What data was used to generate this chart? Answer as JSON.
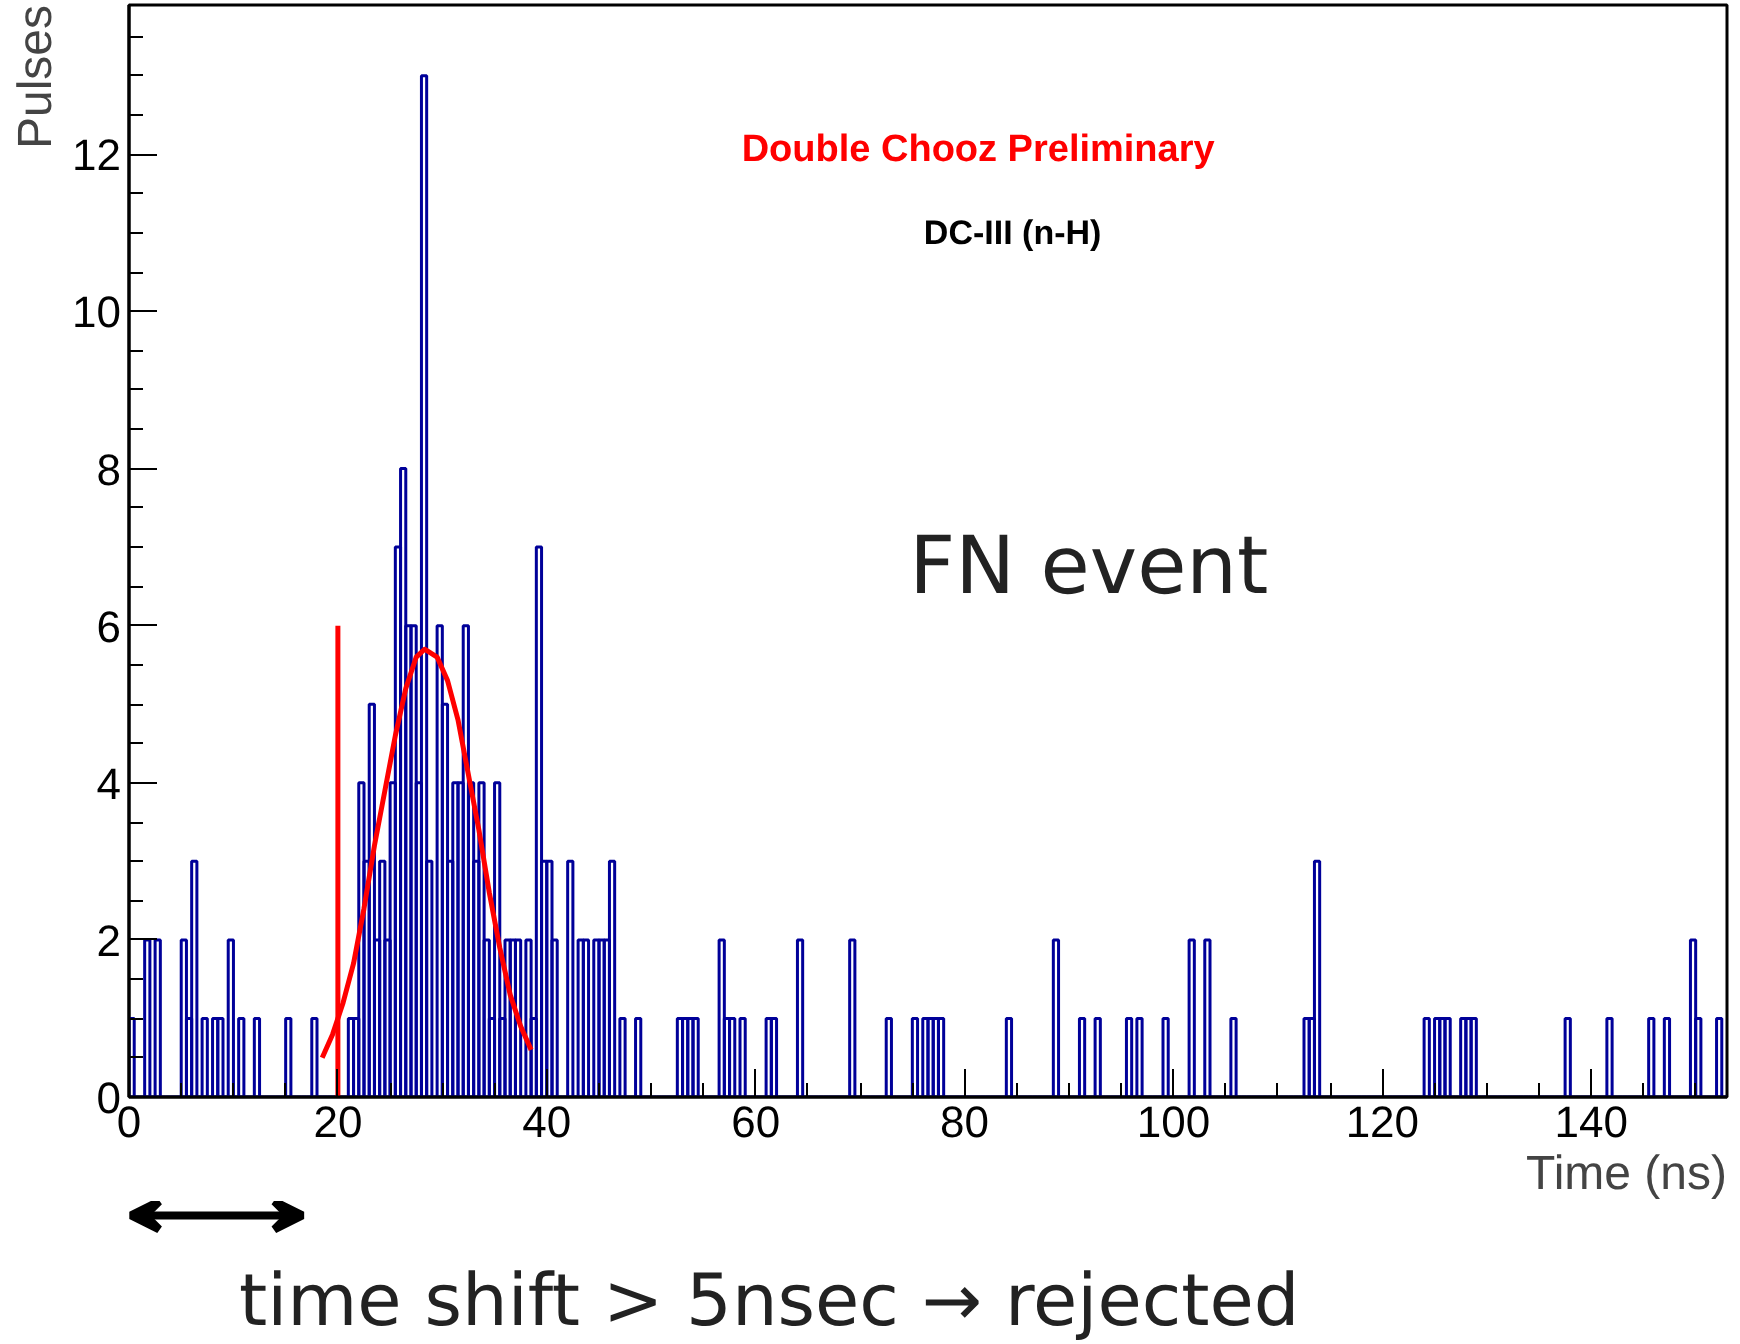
{
  "chart_data": {
    "type": "histogram",
    "xlabel": "Time (ns)",
    "ylabel": "Pulses",
    "xlim": [
      0,
      153
    ],
    "ylim": [
      0,
      13.9
    ],
    "xticks": [
      0,
      20,
      40,
      60,
      80,
      100,
      120,
      140
    ],
    "yticks": [
      0,
      2,
      4,
      6,
      8,
      10,
      12
    ],
    "bins": [
      0,
      0.5,
      1,
      1.5,
      2,
      2.5,
      3,
      3.5,
      4,
      4.5,
      5,
      5.5,
      6,
      6.5,
      7,
      7.5,
      8,
      8.5,
      9,
      9.5,
      10,
      10.5,
      11,
      11.5,
      12,
      12.5,
      13,
      13.5,
      14,
      14.5,
      15,
      15.5,
      16,
      16.5,
      17,
      17.5,
      18,
      18.5,
      19,
      19.5,
      20,
      20.5,
      21,
      21.5,
      22,
      22.5,
      23,
      23.5,
      24,
      24.5,
      25,
      25.5,
      26,
      26.5,
      27,
      27.5,
      28,
      28.5,
      29,
      29.5,
      30,
      30.5,
      31,
      31.5,
      32,
      32.5,
      33,
      33.5,
      34,
      34.5,
      35,
      35.5,
      36,
      36.5,
      37,
      37.5,
      38,
      38.5,
      39,
      39.5,
      40,
      40.5,
      41,
      41.5,
      42,
      42.5,
      43,
      43.5,
      44,
      44.5,
      45,
      45.5,
      46,
      46.5,
      47,
      47.5,
      48,
      48.5,
      49,
      49.5,
      50,
      50.5,
      51,
      51.5,
      52,
      52.5,
      53,
      53.5,
      54,
      54.5,
      55,
      55.5,
      56,
      56.5,
      57,
      57.5,
      58,
      58.5,
      59,
      59.5,
      60,
      60.5,
      61,
      61.5,
      62,
      62.5,
      63,
      63.5,
      64,
      64.5,
      65,
      65.5,
      66,
      66.5,
      67,
      67.5,
      68,
      68.5,
      69,
      69.5,
      70,
      70.5,
      71,
      71.5,
      72,
      72.5,
      73,
      73.5,
      74,
      74.5,
      75,
      75.5,
      76,
      76.5,
      77,
      77.5,
      78,
      78.5,
      79,
      79.5,
      80,
      80.5,
      81,
      81.5,
      82,
      82.5,
      83,
      83.5,
      84,
      84.5,
      85,
      85.5,
      86,
      86.5,
      87,
      87.5,
      88,
      88.5,
      89,
      89.5,
      90,
      90.5,
      91,
      91.5,
      92,
      92.5,
      93,
      93.5,
      94,
      94.5,
      95,
      95.5,
      96,
      96.5,
      97,
      97.5,
      98,
      98.5,
      99,
      99.5,
      100,
      100.5,
      101,
      101.5,
      102,
      102.5,
      103,
      103.5,
      104,
      104.5,
      105,
      105.5,
      106,
      106.5,
      107,
      107.5,
      108,
      108.5,
      109,
      109.5,
      110,
      110.5,
      111,
      111.5,
      112,
      112.5,
      113,
      113.5,
      114,
      114.5,
      115,
      115.5,
      116,
      116.5,
      117,
      117.5,
      118,
      118.5,
      119,
      119.5,
      120,
      120.5,
      121,
      121.5,
      122,
      122.5,
      123,
      123.5,
      124,
      124.5,
      125,
      125.5,
      126,
      126.5,
      127,
      127.5,
      128,
      128.5,
      129,
      129.5,
      130,
      130.5,
      131,
      131.5,
      132,
      132.5,
      133,
      133.5,
      134,
      134.5,
      135,
      135.5,
      136,
      136.5,
      137,
      137.5,
      138,
      138.5,
      139,
      139.5,
      140,
      140.5,
      141,
      141.5,
      142,
      142.5,
      143,
      143.5,
      144,
      144.5,
      145,
      145.5,
      146,
      146.5,
      147,
      147.5,
      148,
      148.5,
      149,
      149.5,
      150,
      150.5,
      151,
      151.5,
      152,
      152.5,
      153
    ],
    "series": [
      {
        "color": "#000099",
        "values": [
          1,
          0,
          0,
          2,
          0,
          2,
          0,
          0,
          0,
          0,
          2,
          1,
          3,
          0,
          1,
          0,
          1,
          1,
          0,
          2,
          0,
          1,
          0,
          0,
          1,
          0,
          0,
          0,
          0,
          0,
          1,
          0,
          0,
          0,
          0,
          1,
          0,
          0,
          0,
          0,
          0,
          0,
          1,
          1,
          4,
          3,
          5,
          2,
          3,
          2,
          4,
          7,
          8,
          6,
          6,
          4,
          13,
          3,
          0,
          6,
          5,
          3,
          4,
          4,
          6,
          4,
          3,
          4,
          2,
          1,
          4,
          1,
          2,
          2,
          2,
          0,
          2,
          1,
          7,
          3,
          3,
          2,
          0,
          0,
          3,
          0,
          2,
          2,
          0,
          2,
          2,
          2,
          3,
          0,
          1,
          0,
          0,
          1,
          0,
          0,
          0,
          0,
          0,
          0,
          0,
          1,
          1,
          1,
          1,
          0,
          0,
          0,
          0,
          2,
          1,
          1,
          0,
          1,
          0,
          0,
          0,
          0,
          1,
          1,
          0,
          0,
          0,
          0,
          2,
          0,
          0,
          0,
          0,
          0,
          0,
          0,
          0,
          0,
          2,
          0,
          0,
          0,
          0,
          0,
          0,
          1,
          0,
          0,
          0,
          0,
          1,
          0,
          1,
          1,
          1,
          1,
          0,
          0,
          0,
          0,
          0,
          0,
          0,
          0,
          0,
          0,
          0,
          0,
          1,
          0,
          0,
          0,
          0,
          0,
          0,
          0,
          0,
          2,
          0,
          0,
          0,
          0,
          1,
          0,
          0,
          1,
          0,
          0,
          0,
          0,
          0,
          1,
          0,
          1,
          0,
          0,
          0,
          0,
          1,
          0,
          0,
          0,
          0,
          2,
          0,
          0,
          2,
          0,
          0,
          0,
          0,
          1,
          0,
          0,
          0,
          0,
          0,
          0,
          0,
          0,
          0,
          0,
          0,
          0,
          0,
          1,
          1,
          3,
          0,
          0,
          0,
          0,
          0,
          0,
          0,
          0,
          0,
          0,
          0,
          0,
          0,
          0,
          0,
          0,
          0,
          0,
          0,
          0,
          1,
          0,
          1,
          1,
          1,
          0,
          0,
          1,
          1,
          1,
          0,
          0,
          0,
          0,
          0,
          0,
          0,
          0,
          0,
          0,
          0,
          0,
          0,
          0,
          0,
          0,
          0,
          1,
          0,
          0,
          0,
          0,
          0,
          0,
          0,
          1,
          0,
          0,
          0,
          0,
          0,
          0,
          0,
          1,
          0,
          0,
          1,
          0,
          0,
          0,
          0,
          2,
          1,
          0,
          0,
          0,
          1,
          0
        ]
      },
      {
        "type": "line",
        "color": "#ff0000",
        "x": [
          18.5,
          19.5,
          20.5,
          21.5,
          22.5,
          23.5,
          24.5,
          25.5,
          26.5,
          27.5,
          28.3,
          29.5,
          30.5,
          31.5,
          32.5,
          33.5,
          34.5,
          35.5,
          36.5,
          37.5,
          38.5
        ],
        "values": [
          0.5,
          0.8,
          1.2,
          1.7,
          2.4,
          3.2,
          3.9,
          4.6,
          5.2,
          5.6,
          5.7,
          5.6,
          5.3,
          4.8,
          4.1,
          3.4,
          2.6,
          1.9,
          1.3,
          0.9,
          0.6
        ]
      },
      {
        "type": "line",
        "color": "#ff0000",
        "x": [
          20,
          20
        ],
        "values": [
          0,
          6
        ]
      }
    ],
    "annotations": [
      "Double Chooz Preliminary",
      "DC-III (n-H)",
      "FN event",
      "time shift > 5nsec → rejected"
    ]
  }
}
